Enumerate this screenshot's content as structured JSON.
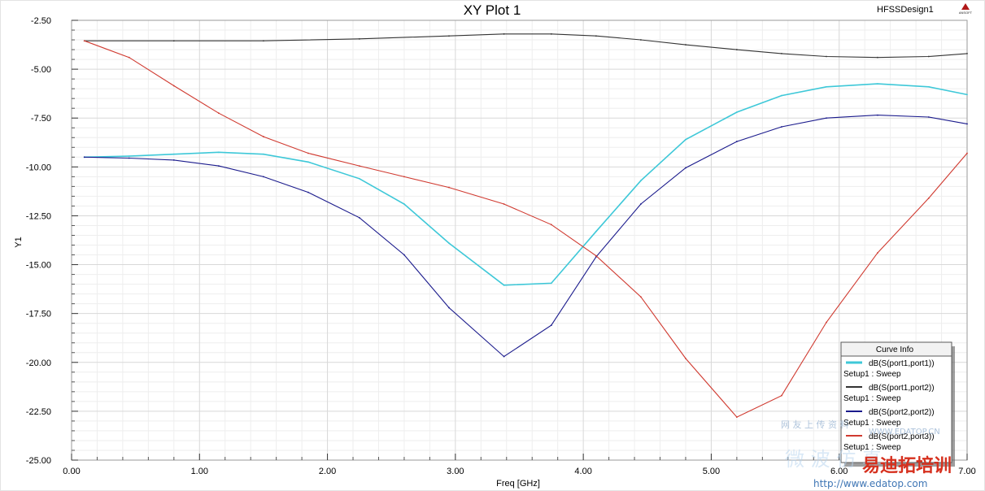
{
  "header": {
    "design_name": "HFSSDesign1",
    "logo_text": "ANSOFT"
  },
  "colors": {
    "s11": "#3ec8d8",
    "s12": "#333333",
    "s22": "#1a1a8c",
    "s32": "#d03a30",
    "grid_major": "#d8d8d8",
    "grid_minor": "#eeeeee"
  },
  "legend": {
    "title": "Curve Info",
    "entries": [
      {
        "name": "dB(S(port1,port1))",
        "sub": "Setup1 : Sweep",
        "color": "#3ec8d8"
      },
      {
        "name": "dB(S(port1,port2))",
        "sub": "Setup1 : Sweep",
        "color": "#333333"
      },
      {
        "name": "dB(S(port2,port2))",
        "sub": "Setup1 : Sweep",
        "color": "#1a1a8c"
      },
      {
        "name": "dB(S(port2,port3))",
        "sub": "Setup1 : Sweep",
        "color": "#d03a30"
      }
    ]
  },
  "watermark": {
    "line1": "网 友 上 传 资 料",
    "line2": "WWW.EDATOP.CN",
    "brand": "易迪拓培训",
    "url": "http://www.edatop.com"
  },
  "chart_data": {
    "type": "line",
    "title": "XY Plot 1",
    "xlabel": "Freq [GHz]",
    "ylabel": "Y1",
    "xlim": [
      0,
      7.0
    ],
    "ylim": [
      -25.0,
      -2.5
    ],
    "xticks": [
      0,
      1,
      2,
      3,
      4,
      5,
      6,
      7
    ],
    "xtick_labels": [
      "0.00",
      "1.00",
      "2.00",
      "3.00",
      "4.00",
      "5.00",
      "6.00",
      "7.00"
    ],
    "yticks": [
      -2.5,
      -5,
      -7.5,
      -10,
      -12.5,
      -15,
      -17.5,
      -20,
      -22.5,
      -25
    ],
    "ytick_labels": [
      "-2.50",
      "-5.00",
      "-7.50",
      "-10.00",
      "-12.50",
      "-15.00",
      "-17.50",
      "-20.00",
      "-22.50",
      "-25.00"
    ],
    "grid": true,
    "legend_position": "bottom-right",
    "series": [
      {
        "name": "dB(S(port1,port1))",
        "color": "#3ec8d8",
        "x": [
          0.1,
          0.45,
          0.8,
          1.15,
          1.5,
          1.85,
          2.25,
          2.6,
          2.95,
          3.38,
          3.75,
          4.1,
          4.45,
          4.8,
          5.2,
          5.55,
          5.9,
          6.3,
          6.7,
          7.0
        ],
        "y": [
          -9.5,
          -9.45,
          -9.35,
          -9.25,
          -9.35,
          -9.75,
          -10.6,
          -11.9,
          -13.9,
          -16.05,
          -15.95,
          -13.3,
          -10.7,
          -8.6,
          -7.2,
          -6.35,
          -5.9,
          -5.75,
          -5.9,
          -6.3
        ]
      },
      {
        "name": "dB(S(port1,port2))",
        "color": "#333333",
        "x": [
          0.1,
          0.8,
          1.5,
          2.25,
          2.95,
          3.38,
          3.75,
          4.1,
          4.45,
          4.8,
          5.2,
          5.55,
          5.9,
          6.3,
          6.7,
          7.0
        ],
        "y": [
          -3.55,
          -3.55,
          -3.55,
          -3.45,
          -3.3,
          -3.2,
          -3.2,
          -3.3,
          -3.5,
          -3.75,
          -4.0,
          -4.2,
          -4.35,
          -4.4,
          -4.35,
          -4.2
        ]
      },
      {
        "name": "dB(S(port2,port2))",
        "color": "#1a1a8c",
        "x": [
          0.1,
          0.45,
          0.8,
          1.15,
          1.5,
          1.85,
          2.25,
          2.6,
          2.95,
          3.38,
          3.75,
          4.1,
          4.45,
          4.8,
          5.2,
          5.55,
          5.9,
          6.3,
          6.7,
          7.0
        ],
        "y": [
          -9.5,
          -9.55,
          -9.65,
          -9.95,
          -10.5,
          -11.3,
          -12.6,
          -14.5,
          -17.2,
          -19.7,
          -18.1,
          -14.6,
          -11.9,
          -10.05,
          -8.7,
          -7.95,
          -7.5,
          -7.35,
          -7.45,
          -7.8
        ]
      },
      {
        "name": "dB(S(port2,port3))",
        "color": "#d03a30",
        "x": [
          0.1,
          0.45,
          0.8,
          1.15,
          1.5,
          1.85,
          2.25,
          2.6,
          2.95,
          3.38,
          3.75,
          4.1,
          4.45,
          4.8,
          5.2,
          5.55,
          5.9,
          6.3,
          6.7,
          7.0
        ],
        "y": [
          -3.55,
          -4.4,
          -5.85,
          -7.25,
          -8.45,
          -9.3,
          -9.95,
          -10.5,
          -11.05,
          -11.9,
          -12.95,
          -14.55,
          -16.65,
          -19.8,
          -22.8,
          -21.7,
          -17.95,
          -14.4,
          -11.6,
          -9.3
        ]
      }
    ]
  }
}
